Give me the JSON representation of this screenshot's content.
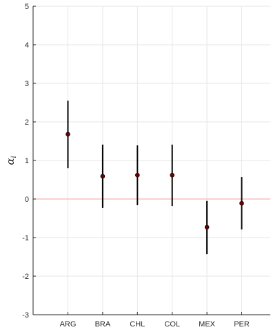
{
  "chart_data": {
    "type": "scatter",
    "title": "",
    "xlabel": "",
    "ylabel": "α",
    "ylabel_subscript": "i",
    "categories": [
      "ARG",
      "BRA",
      "CHL",
      "COL",
      "MEX",
      "PER"
    ],
    "series": [
      {
        "estimates": [
          1.68,
          0.59,
          0.62,
          0.62,
          -0.73,
          -0.11
        ],
        "lower": [
          0.8,
          -0.23,
          -0.16,
          -0.18,
          -1.43,
          -0.79
        ],
        "upper": [
          2.55,
          1.41,
          1.39,
          1.41,
          -0.05,
          0.57
        ],
        "marker_color": "#6b0000",
        "errorbar_color": "#000000"
      }
    ],
    "ylim": [
      -3,
      5
    ],
    "yticks": [
      "-3",
      "-2",
      "-1",
      "0",
      "1",
      "2",
      "3",
      "4",
      "5"
    ],
    "ytick_values": [
      -3,
      -2,
      -1,
      0,
      1,
      2,
      3,
      4,
      5
    ],
    "reference_line": {
      "y": 0,
      "color": "#f0a0a0"
    },
    "grid": true,
    "grid_color": "#e6e6e6",
    "axis_color": "#262626"
  }
}
